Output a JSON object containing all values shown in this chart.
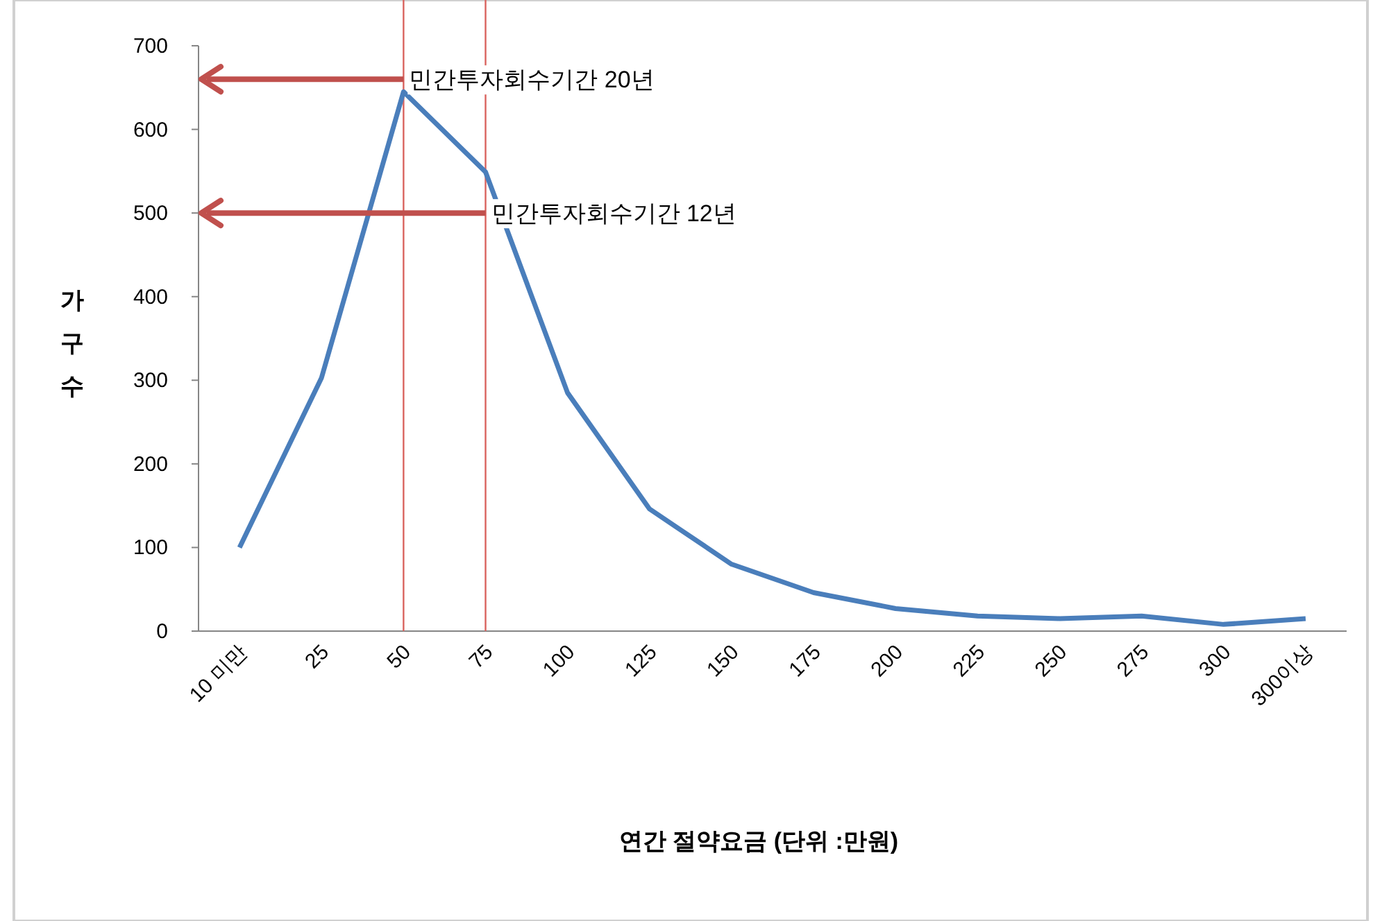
{
  "chart_data": {
    "type": "line",
    "xlabel": "연간 절약요금 (단위 :만원)",
    "ylabel": "가구수",
    "categories": [
      "10 미만",
      "25",
      "50",
      "75",
      "100",
      "125",
      "150",
      "175",
      "200",
      "225",
      "250",
      "275",
      "300",
      "300이상"
    ],
    "series": [
      {
        "color": "#4a7ebb",
        "values": [
          100,
          303,
          645,
          549,
          285,
          146,
          80,
          46,
          27,
          18,
          15,
          18,
          8,
          15
        ]
      }
    ],
    "ylim": [
      0,
      700
    ],
    "yticks": [
      0,
      100,
      200,
      300,
      400,
      500,
      600,
      700
    ],
    "grid": false,
    "marker": "none",
    "line_style": "solid",
    "ref_lines": [
      {
        "axis": "x",
        "value": "50",
        "color": "#d9635e"
      },
      {
        "axis": "x",
        "value": "75",
        "color": "#d9635e"
      }
    ],
    "annotations": [
      {
        "text": "민간투자회수기간 20년",
        "x": "50",
        "y": 660
      },
      {
        "text": "민간투자회수기간 12년",
        "x": "75",
        "y": 500
      }
    ]
  }
}
